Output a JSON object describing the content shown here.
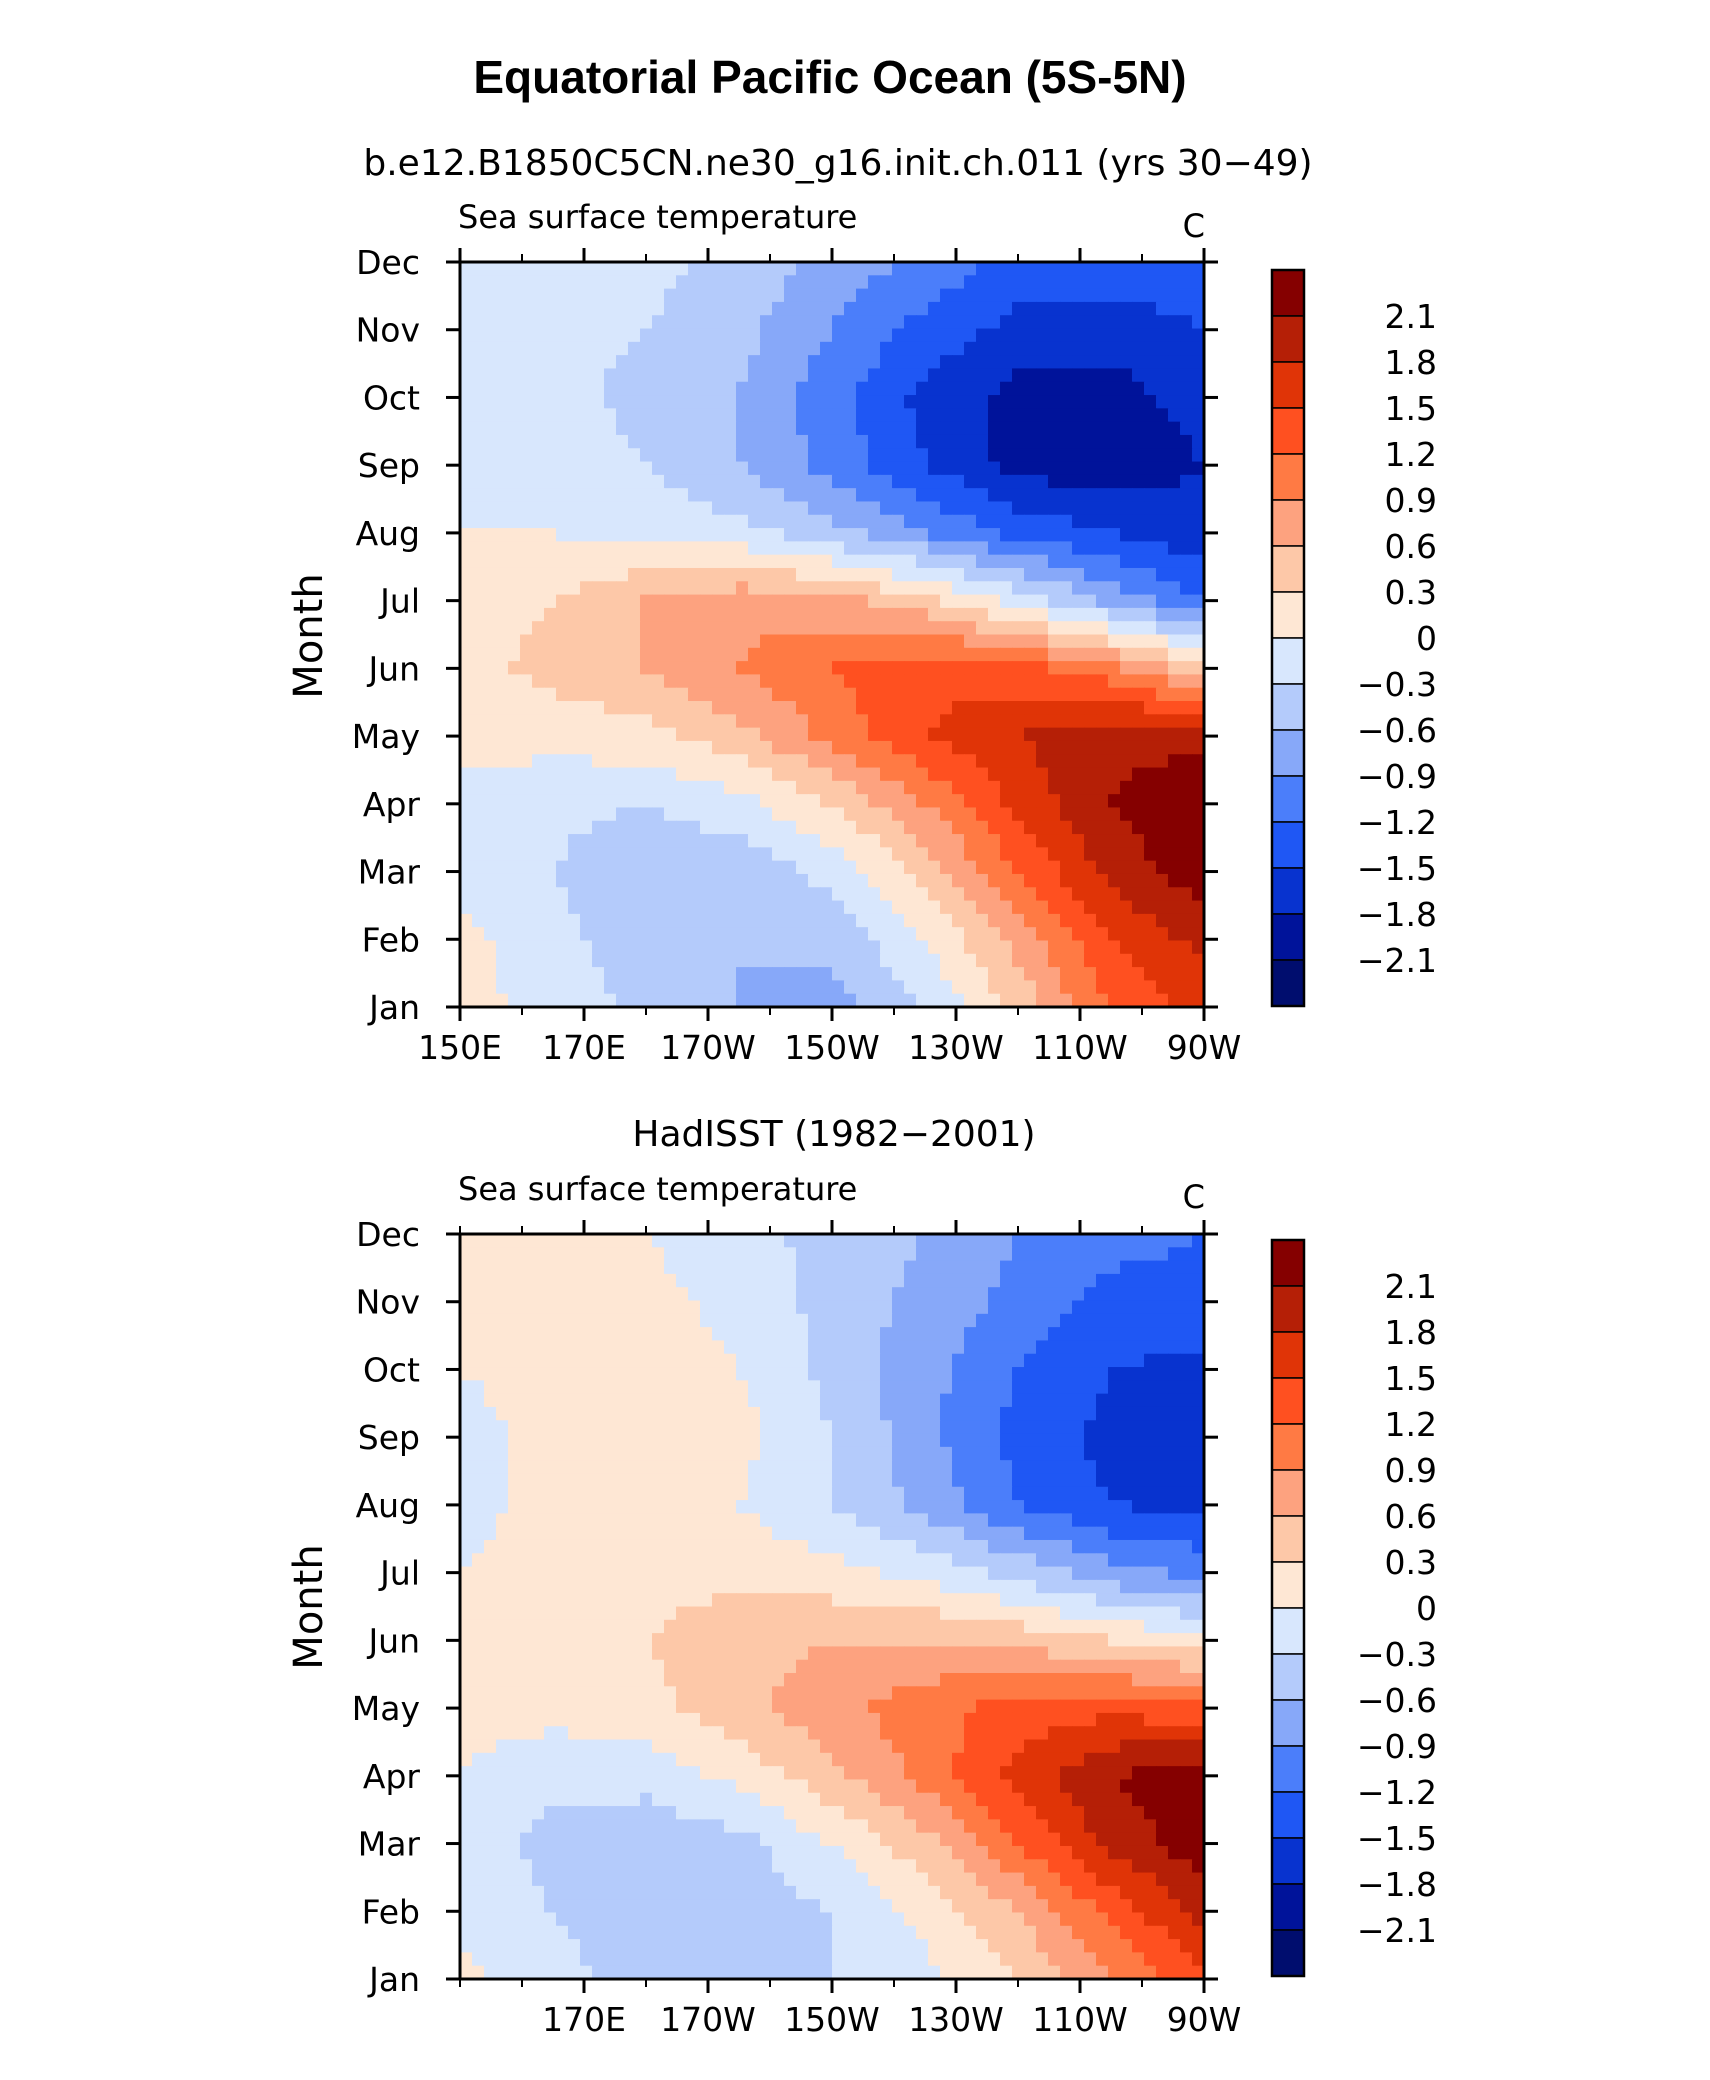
{
  "figure": {
    "title": "Equatorial Pacific Ocean (5S-5N)"
  },
  "colorbar": {
    "levels": [
      "2.1",
      "1.8",
      "1.5",
      "1.2",
      "0.9",
      "0.6",
      "0.3",
      "0",
      "−0.3",
      "−0.6",
      "−0.9",
      "−1.2",
      "−1.5",
      "−1.8",
      "−2.1"
    ],
    "colors": [
      "#850000",
      "#b51f06",
      "#e03407",
      "#ff5020",
      "#ff7a44",
      "#fda27f",
      "#fdc8a8",
      "#fee7d4",
      "#d8e7fd",
      "#b4cbfb",
      "#87a8f9",
      "#4b7efa",
      "#1f57f4",
      "#0833cf",
      "#00139a",
      "#000d6e"
    ]
  },
  "chart_data": [
    {
      "type": "heatmap",
      "title": "b.e12.B1850C5CN.ne30_g16.init.ch.011 (yrs 30−49)",
      "subtitle": "Sea surface temperature",
      "units": "C",
      "ylabel": "Month",
      "x_ticklabels": [
        "150E",
        "170E",
        "170W",
        "150W",
        "130W",
        "110W",
        "90W"
      ],
      "x_ticks_lon": [
        150,
        170,
        190,
        210,
        230,
        250,
        270
      ],
      "xlim": [
        150,
        270
      ],
      "y_ticklabels": [
        "Jan",
        "Feb",
        "Mar",
        "Apr",
        "May",
        "Jun",
        "Jul",
        "Aug",
        "Sep",
        "Oct",
        "Nov",
        "Dec"
      ],
      "ylim": [
        "Jan",
        "Dec"
      ],
      "x": [
        150,
        165,
        180,
        195,
        210,
        225,
        240,
        255,
        270
      ],
      "y": [
        "Jan",
        "Feb",
        "Mar",
        "Apr",
        "May",
        "Jun",
        "Jul",
        "Aug",
        "Sep",
        "Oct",
        "Nov",
        "Dec"
      ],
      "z": [
        [
          0.1,
          -0.1,
          -0.4,
          -0.6,
          -0.7,
          -0.3,
          0.4,
          1.2,
          1.6
        ],
        [
          0.1,
          -0.2,
          -0.5,
          -0.6,
          -0.5,
          0.0,
          0.7,
          1.5,
          1.9
        ],
        [
          -0.1,
          -0.3,
          -0.6,
          -0.5,
          -0.2,
          0.4,
          1.2,
          1.9,
          2.3
        ],
        [
          -0.1,
          -0.2,
          -0.3,
          -0.1,
          0.3,
          0.9,
          1.6,
          2.1,
          2.4
        ],
        [
          0.1,
          0.1,
          0.2,
          0.5,
          1.0,
          1.5,
          1.8,
          2.0,
          2.0
        ],
        [
          0.2,
          0.4,
          0.6,
          0.9,
          1.2,
          1.4,
          1.3,
          1.0,
          0.4
        ],
        [
          0.1,
          0.3,
          0.6,
          0.8,
          0.7,
          0.4,
          -0.1,
          -0.7,
          -1.2
        ],
        [
          0.0,
          0.0,
          -0.1,
          -0.2,
          -0.5,
          -0.9,
          -1.3,
          -1.5,
          -1.7
        ],
        [
          -0.1,
          -0.1,
          -0.3,
          -0.6,
          -1.0,
          -1.5,
          -1.9,
          -2.0,
          -1.8
        ],
        [
          -0.2,
          -0.2,
          -0.4,
          -0.6,
          -1.1,
          -1.6,
          -1.9,
          -1.9,
          -1.7
        ],
        [
          -0.1,
          -0.2,
          -0.3,
          -0.5,
          -0.9,
          -1.3,
          -1.6,
          -1.7,
          -1.5
        ],
        [
          0.0,
          -0.2,
          -0.2,
          -0.4,
          -0.7,
          -1.0,
          -1.3,
          -1.3,
          -1.2
        ]
      ]
    },
    {
      "type": "heatmap",
      "title": "HadISST (1982−2001)",
      "subtitle": "Sea surface temperature",
      "units": "C",
      "ylabel": "Month",
      "x_ticklabels": [
        "170E",
        "170W",
        "150W",
        "130W",
        "110W",
        "90W"
      ],
      "x_ticks_lon": [
        170,
        190,
        210,
        230,
        250,
        270
      ],
      "xlim": [
        150,
        270
      ],
      "y_ticklabels": [
        "Jan",
        "Feb",
        "Mar",
        "Apr",
        "May",
        "Jun",
        "Jul",
        "Aug",
        "Sep",
        "Oct",
        "Nov",
        "Dec"
      ],
      "ylim": [
        "Jan",
        "Dec"
      ],
      "x": [
        150,
        165,
        180,
        195,
        210,
        225,
        240,
        255,
        270
      ],
      "y": [
        "Jan",
        "Feb",
        "Mar",
        "Apr",
        "May",
        "Jun",
        "Jul",
        "Aug",
        "Sep",
        "Oct",
        "Nov",
        "Dec"
      ],
      "z": [
        [
          0.1,
          -0.2,
          -0.4,
          -0.4,
          -0.3,
          -0.1,
          0.3,
          0.9,
          1.4
        ],
        [
          -0.1,
          -0.3,
          -0.5,
          -0.5,
          -0.3,
          0.1,
          0.6,
          1.3,
          1.9
        ],
        [
          -0.1,
          -0.4,
          -0.5,
          -0.4,
          0.0,
          0.5,
          1.2,
          1.9,
          2.3
        ],
        [
          0.0,
          -0.2,
          -0.2,
          0.1,
          0.5,
          1.0,
          1.6,
          2.1,
          2.3
        ],
        [
          0.1,
          0.1,
          0.2,
          0.5,
          0.8,
          1.1,
          1.3,
          1.4,
          1.3
        ],
        [
          0.1,
          0.2,
          0.3,
          0.5,
          0.6,
          0.6,
          0.5,
          0.3,
          0.1
        ],
        [
          0.0,
          0.1,
          0.2,
          0.2,
          0.1,
          -0.1,
          -0.4,
          -0.8,
          -1.0
        ],
        [
          -0.1,
          0.1,
          0.2,
          0.0,
          -0.3,
          -0.7,
          -1.2,
          -1.5,
          -1.6
        ],
        [
          -0.1,
          0.1,
          0.3,
          0.1,
          -0.3,
          -0.8,
          -1.3,
          -1.6,
          -1.7
        ],
        [
          0.0,
          0.1,
          0.2,
          0.0,
          -0.4,
          -0.8,
          -1.2,
          -1.5,
          -1.6
        ],
        [
          0.1,
          0.1,
          0.1,
          -0.1,
          -0.4,
          -0.7,
          -1.0,
          -1.3,
          -1.3
        ],
        [
          0.1,
          0.1,
          0.0,
          -0.2,
          -0.4,
          -0.6,
          -0.9,
          -1.1,
          -1.2
        ]
      ]
    }
  ]
}
